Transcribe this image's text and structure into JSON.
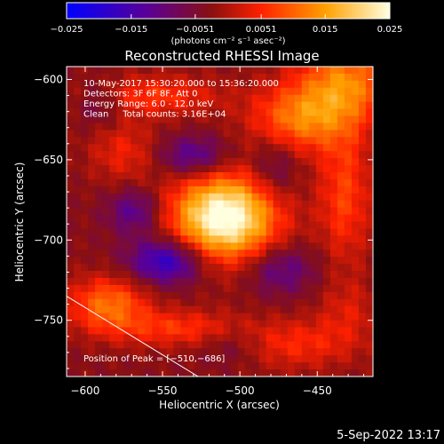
{
  "chart_data": {
    "type": "heatmap",
    "title": "Reconstructed RHESSI Image",
    "xlabel": "Heliocentric X (arcsec)",
    "ylabel": "Heliocentric Y (arcsec)",
    "xlim": [
      -612,
      -414
    ],
    "ylim": [
      -785,
      -592
    ],
    "xticks": [
      -600,
      -550,
      -500,
      -450
    ],
    "xtick_labels": [
      "−600",
      "−550",
      "−500",
      "−450"
    ],
    "yticks": [
      -600,
      -650,
      -700,
      -750
    ],
    "ytick_labels": [
      "−600",
      "−650",
      "−700",
      "−750"
    ],
    "colorbar": {
      "range": [
        -0.025,
        0.025
      ],
      "ticks": [
        -0.025,
        -0.015,
        -0.0051,
        0.0051,
        0.015,
        0.025
      ],
      "tick_labels": [
        "−0.025",
        "−0.015",
        "−0.0051",
        "0.0051",
        "0.015",
        "0.025"
      ],
      "unit_label": "(photons cm⁻² s⁻¹ asec⁻²)",
      "colors": [
        "#0000ff",
        "#5a0096",
        "#8a1010",
        "#ff2000",
        "#ffa000",
        "#ffffe0"
      ]
    },
    "info_lines": [
      "10-May-2017 15:30:20.000 to 15:36:20.000",
      "Detectors: 3F 6F 8F, Att 0",
      "Energy Range: 6.0 - 12.0 keV",
      "Clean     Total counts: 3.16E+04"
    ],
    "peak_label": "Position of Peak = [−510,−686]",
    "peak": {
      "x": -510,
      "y": -686
    },
    "limb_line": {
      "x": [
        -612,
        -527
      ],
      "y": [
        -735,
        -785
      ]
    },
    "components": [
      {
        "x": -510,
        "y": -686,
        "sx": 24,
        "sy": 19,
        "amp": 0.03
      },
      {
        "x": -462,
        "y": -625,
        "sx": 22,
        "sy": 15,
        "amp": 0.014
      },
      {
        "x": -432,
        "y": -602,
        "sx": 22,
        "sy": 18,
        "amp": 0.015
      },
      {
        "x": -555,
        "y": -610,
        "sx": 30,
        "sy": 9,
        "amp": 0.009
      },
      {
        "x": -575,
        "y": -645,
        "sx": 16,
        "sy": 14,
        "amp": 0.007
      },
      {
        "x": -432,
        "y": -672,
        "sx": 12,
        "sy": 30,
        "amp": 0.01
      },
      {
        "x": -585,
        "y": -740,
        "sx": 18,
        "sy": 12,
        "amp": 0.014
      },
      {
        "x": -540,
        "y": -755,
        "sx": 30,
        "sy": 8,
        "amp": 0.009
      },
      {
        "x": -465,
        "y": -765,
        "sx": 28,
        "sy": 11,
        "amp": 0.008
      },
      {
        "x": -430,
        "y": -745,
        "sx": 14,
        "sy": 14,
        "amp": 0.005
      },
      {
        "x": -547,
        "y": -713,
        "sx": 17,
        "sy": 10,
        "amp": -0.017
      },
      {
        "x": -568,
        "y": -682,
        "sx": 12,
        "sy": 10,
        "amp": -0.01
      },
      {
        "x": -530,
        "y": -648,
        "sx": 16,
        "sy": 9,
        "amp": -0.011
      },
      {
        "x": -478,
        "y": -655,
        "sx": 11,
        "sy": 14,
        "amp": -0.007
      },
      {
        "x": -474,
        "y": -718,
        "sx": 16,
        "sy": 11,
        "amp": -0.009
      },
      {
        "x": -590,
        "y": -615,
        "sx": 10,
        "sy": 10,
        "amp": -0.006
      },
      {
        "x": -505,
        "y": -765,
        "sx": 15,
        "sy": 9,
        "amp": -0.005
      }
    ],
    "background": -0.003
  },
  "timestamp": "5-Sep-2022 13:17"
}
